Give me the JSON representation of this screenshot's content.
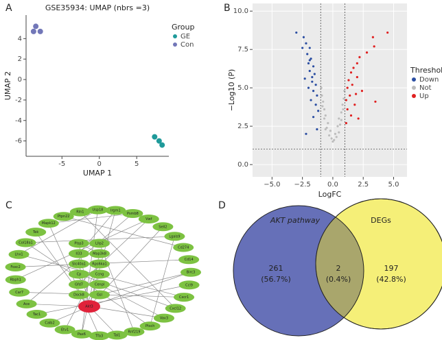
{
  "panel_labels": [
    "A",
    "B",
    "C",
    "D"
  ],
  "chart_data": [
    {
      "type": "scatter",
      "title": "GSE35934: UMAP (nbrs =3)",
      "x_label": "UMAP 1",
      "y_label": "UMAP 2",
      "xlim": [
        -9.8,
        9.3
      ],
      "ylim": [
        -7.5,
        6.3
      ],
      "xticks": [
        -5,
        0,
        5
      ],
      "yticks": [
        -6,
        -4,
        -2,
        0,
        2,
        4
      ],
      "legend_title": "Group",
      "point_size": 4,
      "series": [
        {
          "name": "GE",
          "color": "#1f9a9a",
          "x": [
            7.4,
            8.0,
            8.4
          ],
          "values": [
            -5.6,
            -6.0,
            -6.4
          ]
        },
        {
          "name": "Con",
          "color": "#7277b8",
          "x": [
            -8.5,
            -8.8,
            -7.9
          ],
          "values": [
            5.2,
            4.7,
            4.7
          ]
        }
      ]
    },
    {
      "type": "scatter",
      "x_label": "LogFC",
      "y_label": "−Log10 (P)",
      "xlim": [
        -6.6,
        6.1
      ],
      "ylim": [
        -0.8,
        10.5
      ],
      "xticks": [
        {
          "value": -5,
          "label": "−5.0"
        },
        {
          "value": -2.5,
          "label": "−2.5"
        },
        {
          "value": 0,
          "label": "0.0"
        },
        {
          "value": 2.5,
          "label": "2.5"
        },
        {
          "value": 5,
          "label": "5.0"
        }
      ],
      "yticks": [
        {
          "value": 0,
          "label": "0.0"
        },
        {
          "value": 2.5,
          "label": "2.5"
        },
        {
          "value": 5,
          "label": "5.0"
        },
        {
          "value": 7.5,
          "label": "7.5"
        },
        {
          "value": 10,
          "label": "10.0"
        }
      ],
      "grid": true,
      "background": "#ebebeb",
      "legend_title": "Threshold",
      "point_size": 1.6,
      "vlines": [
        -1,
        1
      ],
      "hlines": [
        1.0
      ],
      "series": [
        {
          "name": "Down",
          "color": "#2b4ea2",
          "x": [
            -2.4,
            -2.2,
            -3.0,
            -1.9,
            -2.1,
            -1.8,
            -2.0,
            -1.6,
            -1.9,
            -1.5,
            -2.3,
            -1.7,
            -1.4,
            -2.0,
            -1.6,
            -1.3,
            -1.8,
            -1.4,
            -1.2,
            -1.6,
            -2.2,
            -1.3,
            -1.9,
            -2.5,
            -1.7
          ],
          "values": [
            8.3,
            7.9,
            8.6,
            7.6,
            7.2,
            6.9,
            6.6,
            6.4,
            6.1,
            5.9,
            5.6,
            5.4,
            5.2,
            5.0,
            4.8,
            4.5,
            4.2,
            3.9,
            3.5,
            3.1,
            2.0,
            2.3,
            6.8,
            7.6,
            5.7
          ]
        },
        {
          "name": "Not",
          "color": "#bdbdbd",
          "x": [
            0,
            0.2,
            -0.2,
            0.4,
            -0.4,
            0.5,
            -0.6,
            0.7,
            -0.7,
            0.8,
            -0.8,
            0.9,
            -0.9,
            0.95,
            -0.95,
            0.3,
            -0.3,
            0.6,
            -0.5,
            0.1,
            -0.1,
            0.85,
            -0.85,
            0.7,
            -0.7,
            0.5,
            -0.6
          ],
          "values": [
            1.5,
            2.0,
            2.2,
            2.5,
            2.7,
            3.0,
            3.2,
            3.4,
            3.6,
            3.9,
            4.1,
            4.3,
            4.5,
            4.8,
            5.0,
            1.8,
            1.9,
            2.6,
            2.4,
            1.6,
            1.7,
            3.6,
            3.8,
            2.9,
            3.0,
            2.1,
            2.3
          ]
        },
        {
          "name": "Up",
          "color": "#e02020",
          "x": [
            4.5,
            3.3,
            3.4,
            2.8,
            2.2,
            2.0,
            1.7,
            1.5,
            2.0,
            1.3,
            1.6,
            1.2,
            2.4,
            1.4,
            1.1,
            1.8,
            1.2,
            1.5,
            3.5,
            1.1,
            2.1,
            1.9
          ],
          "values": [
            8.6,
            8.3,
            7.7,
            7.3,
            7.0,
            6.6,
            6.3,
            6.0,
            5.7,
            5.5,
            5.2,
            5.0,
            4.8,
            4.5,
            4.2,
            3.9,
            3.6,
            3.2,
            4.1,
            2.7,
            3.0,
            4.6
          ]
        }
      ]
    },
    {
      "type": "venn",
      "sets": [
        {
          "name": "AKT pathway",
          "color": "#6670b8",
          "label_color": "#3a4fb0"
        },
        {
          "name": "DEGs",
          "color": "#f5ef78",
          "label_color": "#8a8a3a"
        }
      ],
      "overlap_color": "#a9a66c",
      "values": [
        261,
        2,
        197
      ],
      "value_labels": [
        "261",
        "2",
        "197"
      ],
      "percent_labels": [
        "(56.7%)",
        "(0.4%)",
        "(42.8%)"
      ]
    }
  ],
  "network": {
    "outer": [
      "Rln1",
      "Usp18",
      "Irgm1",
      "Psmb8",
      "Vwf",
      "Sell2",
      "Lgals9",
      "Cd274",
      "Cd14",
      "Birc3",
      "Ccl9",
      "Cxcr1",
      "Cxcl12",
      "Vav3",
      "Ptsch",
      "Rnf219",
      "Tal1",
      "Tfa3",
      "Pax6",
      "Etv1",
      "Calb2",
      "Tac1",
      "Ace",
      "Car7",
      "Rbph1",
      "Foxc2",
      "Lhx1",
      "Col18a1",
      "Tek",
      "Mapk12",
      "Ptpn22"
    ],
    "inner": [
      "Plsp3",
      "Lllp2",
      "Il33",
      "Map3k8",
      "Slc40a1",
      "Rps6ka1",
      "Cp",
      "Ccng",
      "Gfd7",
      "Cenpl",
      "Dock8",
      "Gsl",
      "Akt3"
    ],
    "hub": "Akt3",
    "node_color": "#7dc242",
    "hub_color": "#e0223a",
    "edges": [
      [
        43,
        5
      ],
      [
        43,
        13
      ],
      [
        43,
        20
      ],
      [
        43,
        22
      ],
      [
        43,
        28
      ],
      [
        43,
        9
      ],
      [
        43,
        16
      ],
      [
        43,
        2
      ],
      [
        43,
        35
      ],
      [
        43,
        38
      ],
      [
        43,
        41
      ],
      [
        43,
        31
      ],
      [
        0,
        12
      ],
      [
        1,
        26
      ],
      [
        2,
        33
      ],
      [
        3,
        29
      ],
      [
        4,
        24
      ],
      [
        6,
        27
      ],
      [
        7,
        30
      ],
      [
        8,
        25
      ],
      [
        10,
        21
      ],
      [
        11,
        23
      ],
      [
        14,
        27
      ],
      [
        15,
        32
      ],
      [
        17,
        29
      ],
      [
        18,
        34
      ],
      [
        19,
        36
      ],
      [
        12,
        37
      ],
      [
        13,
        40
      ],
      [
        4,
        39
      ],
      [
        9,
        42
      ],
      [
        1,
        18
      ],
      [
        3,
        22
      ],
      [
        6,
        14
      ],
      [
        26,
        11
      ],
      [
        31,
        34
      ]
    ]
  }
}
